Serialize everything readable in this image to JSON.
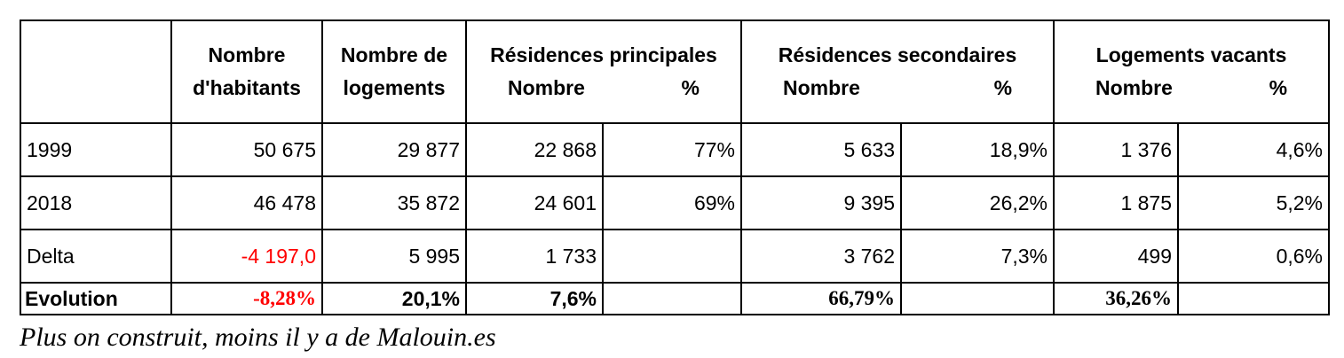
{
  "headers": {
    "habitants_l1": "Nombre",
    "habitants_l2": "d'habitants",
    "logements_l1": "Nombre de",
    "logements_l2": "logements",
    "rp_title": "Résidences principales",
    "rs_title": "Résidences secondaires",
    "lv_title": "Logements vacants",
    "sub_nombre": "Nombre",
    "sub_pct": "%"
  },
  "rows": [
    {
      "label": "1999",
      "habitants": "50 675",
      "logements": "29 877",
      "rp_nombre": "22 868",
      "rp_pct": "77%",
      "rs_nombre": "5 633",
      "rs_pct": "18,9%",
      "lv_nombre": "1 376",
      "lv_pct": "4,6%"
    },
    {
      "label": "2018",
      "habitants": "46 478",
      "logements": "35 872",
      "rp_nombre": "24 601",
      "rp_pct": "69%",
      "rs_nombre": "9 395",
      "rs_pct": "26,2%",
      "lv_nombre": "1 875",
      "lv_pct": "5,2%"
    },
    {
      "label": "Delta",
      "habitants": "-4 197,0",
      "logements": "5 995",
      "rp_nombre": "1 733",
      "rp_pct": "",
      "rs_nombre": "3 762",
      "rs_pct": "7,3%",
      "lv_nombre": "499",
      "lv_pct": "0,6%"
    }
  ],
  "evolution": {
    "label": "Evolution",
    "habitants": "-8,28%",
    "logements": "20,1%",
    "rp_nombre": "7,6%",
    "rs_nombre": "66,79%",
    "lv_nombre": "36,26%"
  },
  "colors": {
    "negative": "#ff0000"
  },
  "caption": "Plus on construit, moins il y a de Malouin.es"
}
